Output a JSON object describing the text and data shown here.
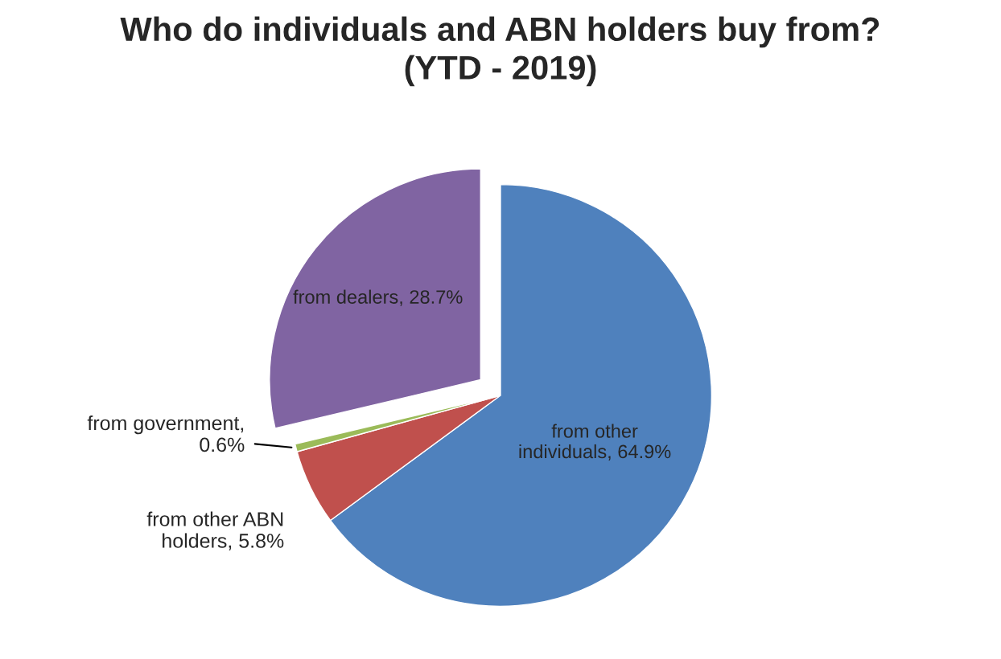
{
  "chart_data": {
    "type": "pie",
    "title": "Who do individuals and ABN holders buy from?\n(YTD - 2019)",
    "categories": [
      "from other individuals, 64.9%",
      "from other ABN holders, 5.8%",
      "from government, 0.6%",
      "from dealers, 28.7%"
    ],
    "values": [
      64.9,
      5.8,
      0.6,
      28.7
    ],
    "colors": [
      "#4f81bd",
      "#c0504d",
      "#9bbb59",
      "#8064a2"
    ],
    "legend": false
  }
}
